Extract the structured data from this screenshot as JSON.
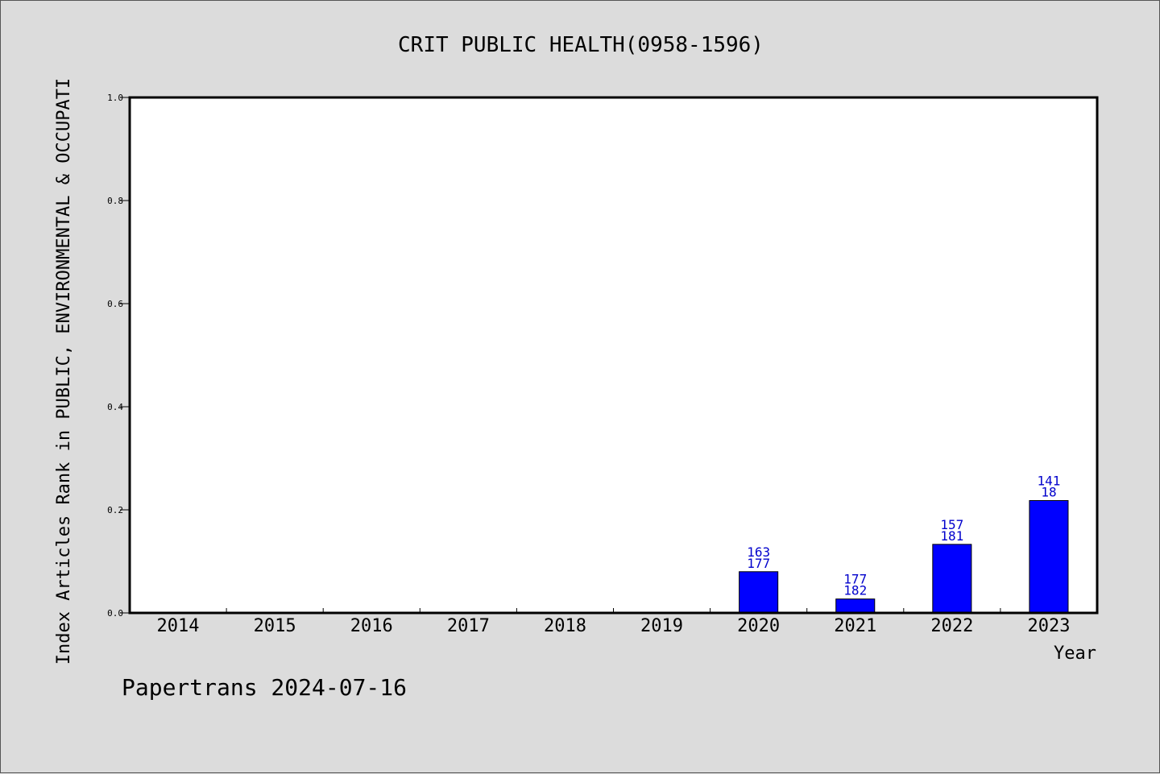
{
  "chart_data": {
    "type": "bar",
    "title": "CRIT PUBLIC HEALTH(0958-1596)",
    "xlabel": "Year",
    "ylabel": "Index Articles Rank in PUBLIC, ENVIRONMENTAL & OCCUPATI",
    "categories": [
      "2014",
      "2015",
      "2016",
      "2017",
      "2018",
      "2019",
      "2020",
      "2021",
      "2022",
      "2023"
    ],
    "values": [
      0,
      0,
      0,
      0,
      0,
      0,
      0.08,
      0.027,
      0.133,
      0.218
    ],
    "bar_labels_top": [
      "",
      "",
      "",
      "",
      "",
      "",
      "163",
      "177",
      "157",
      "141"
    ],
    "bar_labels_bottom": [
      "",
      "",
      "",
      "",
      "",
      "",
      "177",
      "182",
      "181",
      "18"
    ],
    "ylim": [
      0,
      1.0
    ],
    "yticks": [
      "0.0",
      "0.2",
      "0.4",
      "0.6",
      "0.8",
      "1.0"
    ],
    "bar_color": "#0000ff",
    "label_color": "#0000cc",
    "grid": false
  },
  "footer": "Papertrans 2024-07-16"
}
